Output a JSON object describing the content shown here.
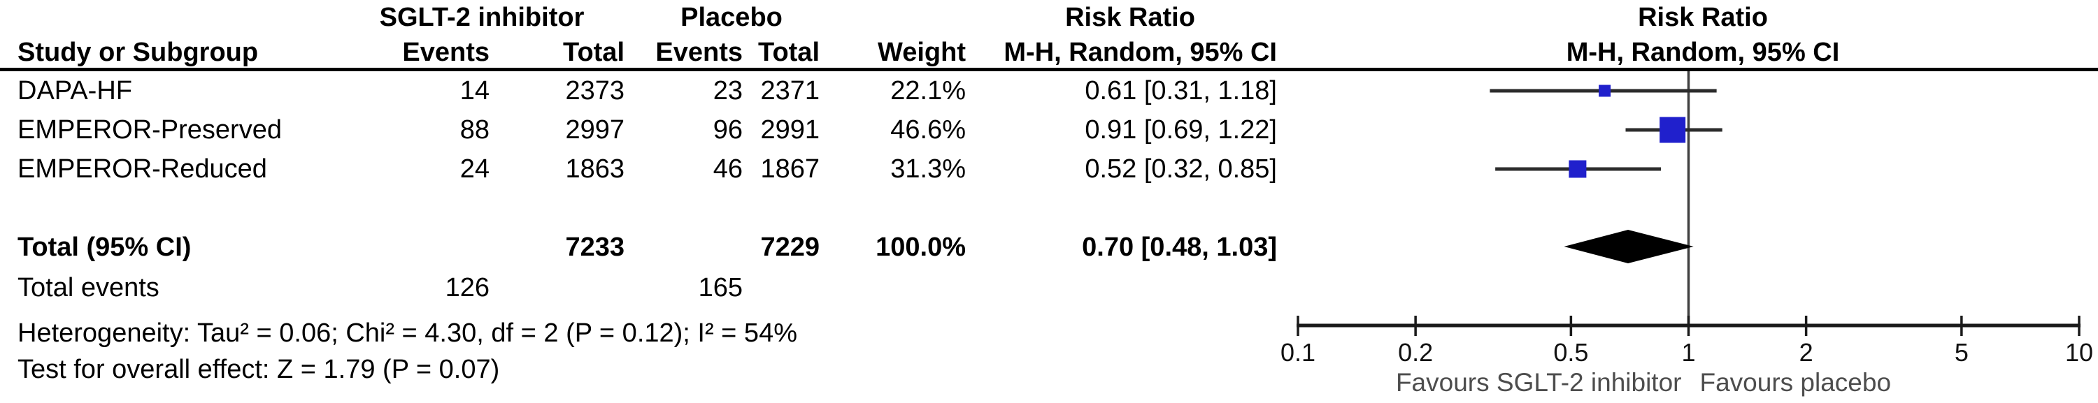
{
  "figure": {
    "group1_header": "SGLT-2 inhibitor",
    "group2_header": "Placebo",
    "risk_ratio_header": "Risk Ratio",
    "method_header": "M-H, Random, 95% CI",
    "study_col_header": "Study or Subgroup",
    "events_col_header": "Events",
    "total_col_header": "Total",
    "weight_col_header": "Weight",
    "rows": [
      {
        "study": "DAPA-HF",
        "events1": "14",
        "total1": "2373",
        "events2": "23",
        "total2": "2371",
        "weight": "22.1%",
        "rr_text": "0.61 [0.31, 1.18]"
      },
      {
        "study": "EMPEROR-Preserved",
        "events1": "88",
        "total1": "2997",
        "events2": "96",
        "total2": "2991",
        "weight": "46.6%",
        "rr_text": "0.91 [0.69, 1.22]"
      },
      {
        "study": "EMPEROR-Reduced",
        "events1": "24",
        "total1": "1863",
        "events2": "46",
        "total2": "1867",
        "weight": "31.3%",
        "rr_text": "0.52 [0.32, 0.85]"
      }
    ],
    "total_row": {
      "label": "Total (95% CI)",
      "total1": "7233",
      "total2": "7229",
      "weight": "100.0%",
      "rr_text": "0.70 [0.48, 1.03]"
    },
    "total_events_row": {
      "label": "Total events",
      "events1": "126",
      "events2": "165"
    },
    "heterogeneity_line": "Heterogeneity: Tau² = 0.06; Chi² = 4.30, df = 2 (P = 0.12); I² = 54%",
    "overall_effect_line": "Test for overall effect: Z = 1.79 (P = 0.07)"
  },
  "chart_data": {
    "type": "forest",
    "effect_measure": "Risk Ratio",
    "model": "M-H, Random, 95% CI",
    "x_scale": "log10",
    "x_range": [
      0.1,
      10
    ],
    "x_ticks": [
      0.1,
      0.2,
      0.5,
      1,
      2,
      5,
      10
    ],
    "null_line": 1,
    "studies": [
      {
        "name": "DAPA-HF",
        "rr": 0.61,
        "ci_low": 0.31,
        "ci_high": 1.18,
        "weight_pct": 22.1
      },
      {
        "name": "EMPEROR-Preserved",
        "rr": 0.91,
        "ci_low": 0.69,
        "ci_high": 1.22,
        "weight_pct": 46.6
      },
      {
        "name": "EMPEROR-Reduced",
        "rr": 0.52,
        "ci_low": 0.32,
        "ci_high": 0.85,
        "weight_pct": 31.3
      }
    ],
    "total": {
      "rr": 0.7,
      "ci_low": 0.48,
      "ci_high": 1.03
    },
    "favours_left": "Favours SGLT-2 inhibitor",
    "favours_right": "Favours placebo",
    "marker_color": "#2020CC",
    "diamond_color": "#000000",
    "line_color": "#2b2b2b"
  }
}
